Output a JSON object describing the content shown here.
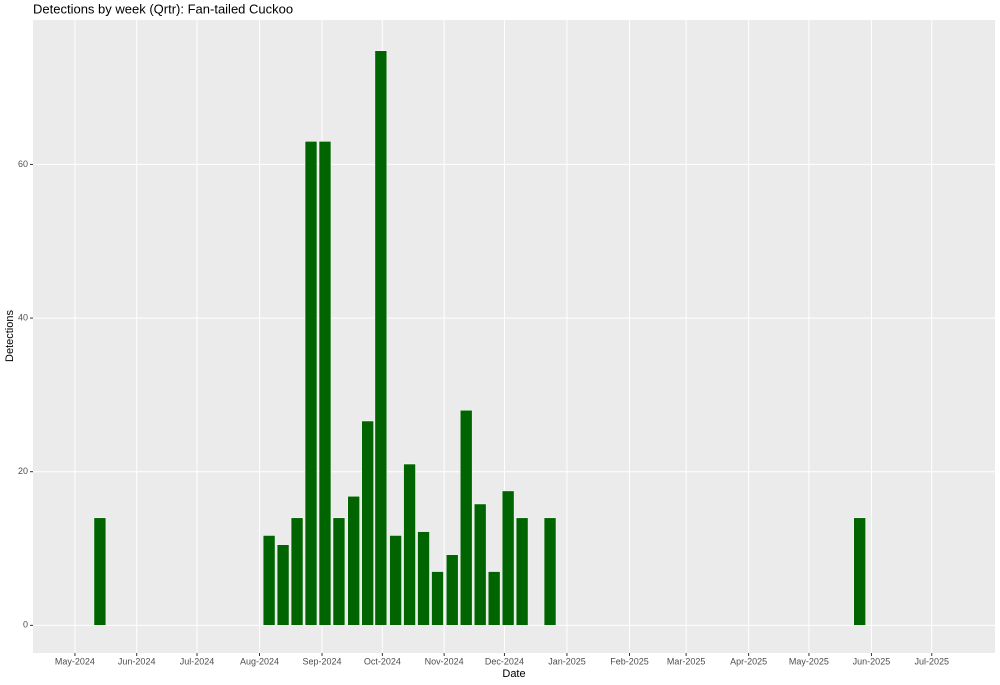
{
  "chart_data": {
    "type": "bar",
    "title": "Detections by week (Qrtr): Fan-tailed Cuckoo",
    "x_label": "Date",
    "y_label": "Detections",
    "color": "#006400",
    "grid": true,
    "x": [
      2024.365,
      2024.595,
      2024.614,
      2024.633,
      2024.652,
      2024.671,
      2024.69,
      2024.71,
      2024.729,
      2024.747,
      2024.767,
      2024.786,
      2024.805,
      2024.824,
      2024.844,
      2024.863,
      2024.882,
      2024.901,
      2024.92,
      2024.939,
      2024.977,
      2025.398
    ],
    "values": [
      14,
      11.7,
      10.5,
      14,
      63,
      63,
      14,
      16.8,
      26.6,
      74.8,
      11.7,
      21,
      12.2,
      7,
      9.2,
      28,
      15.8,
      7,
      17.5,
      14,
      14,
      14
    ],
    "xlim": [
      2024.274,
      2025.582
    ],
    "xticks": [
      {
        "value": 2024.331,
        "label": "May-2024"
      },
      {
        "value": 2024.415,
        "label": "Jun-2024"
      },
      {
        "value": 2024.497,
        "label": "Jul-2024"
      },
      {
        "value": 2024.582,
        "label": "Aug-2024"
      },
      {
        "value": 2024.667,
        "label": "Sep-2024"
      },
      {
        "value": 2024.749,
        "label": "Oct-2024"
      },
      {
        "value": 2024.833,
        "label": "Nov-2024"
      },
      {
        "value": 2024.915,
        "label": "Dec-2024"
      },
      {
        "value": 2025.0,
        "label": "Jan-2025"
      },
      {
        "value": 2025.085,
        "label": "Feb-2025"
      },
      {
        "value": 2025.162,
        "label": "Mar-2025"
      },
      {
        "value": 2025.247,
        "label": "Apr-2025"
      },
      {
        "value": 2025.329,
        "label": "May-2025"
      },
      {
        "value": 2025.414,
        "label": "Jun-2025"
      },
      {
        "value": 2025.496,
        "label": "Jul-2025"
      }
    ],
    "ylim": [
      -3.6,
      78.8
    ],
    "yticks": [
      0,
      20,
      40,
      60
    ]
  }
}
